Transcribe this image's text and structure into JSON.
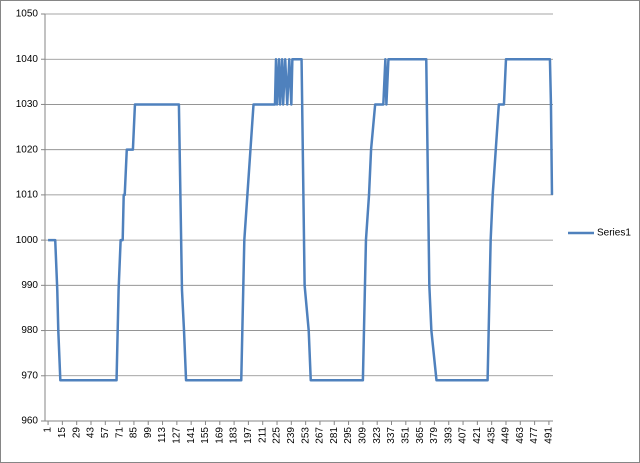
{
  "chart_data": {
    "type": "line",
    "x": [
      1,
      8,
      10,
      11,
      13,
      68,
      70,
      72,
      74,
      75,
      76,
      78,
      84,
      86,
      129,
      132,
      134,
      136,
      190,
      193,
      196,
      199,
      202,
      223,
      224,
      225,
      227,
      228,
      230,
      231,
      233,
      235,
      237,
      239,
      240,
      249,
      252,
      256,
      258,
      309,
      312,
      315,
      317,
      321,
      329,
      331,
      332,
      334,
      335,
      371,
      374,
      376,
      381,
      431,
      434,
      436,
      439,
      442,
      447,
      449,
      492,
      493,
      494
    ],
    "series": [
      {
        "name": "Series1",
        "color": "#4f81bd",
        "values": [
          1000,
          1000,
          989,
          980,
          969,
          969,
          989,
          1000,
          1000,
          1010,
          1010,
          1020,
          1020,
          1030,
          1030,
          989,
          980,
          969,
          969,
          1000,
          1010,
          1020,
          1030,
          1030,
          1040,
          1030,
          1040,
          1030,
          1040,
          1030,
          1040,
          1030,
          1040,
          1030,
          1040,
          1040,
          990,
          980,
          969,
          969,
          1000,
          1010,
          1020,
          1030,
          1030,
          1040,
          1030,
          1040,
          1040,
          1040,
          990,
          980,
          969,
          969,
          1000,
          1010,
          1020,
          1030,
          1030,
          1040,
          1040,
          1030,
          1010
        ]
      }
    ],
    "xlim": [
      -2,
      495
    ],
    "xticks": [
      1,
      15,
      29,
      43,
      57,
      71,
      85,
      99,
      113,
      127,
      141,
      155,
      169,
      183,
      197,
      211,
      225,
      239,
      253,
      267,
      281,
      295,
      309,
      323,
      337,
      351,
      365,
      379,
      393,
      407,
      421,
      435,
      449,
      463,
      477,
      491
    ],
    "ylim": [
      960,
      1050
    ],
    "yticks": [
      960,
      970,
      980,
      990,
      1000,
      1010,
      1020,
      1030,
      1040,
      1050
    ],
    "grid": true,
    "legend": "right"
  }
}
